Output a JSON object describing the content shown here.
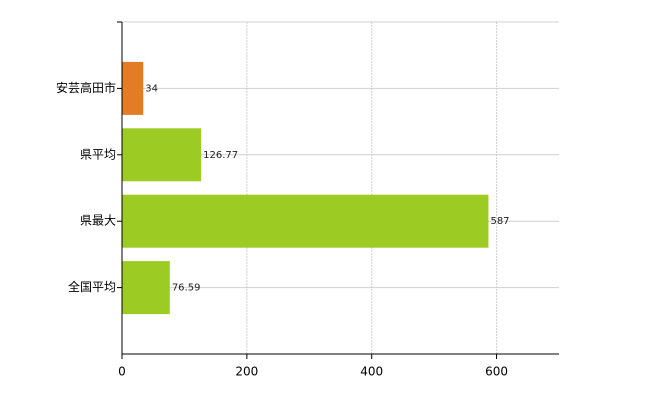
{
  "chart_data": {
    "type": "hbar",
    "categories": [
      "安芸高田市",
      "県平均",
      "県最大",
      "全国平均"
    ],
    "values": [
      34,
      126.77,
      587,
      76.59
    ],
    "colors": [
      "#e47c26",
      "#9ccc24",
      "#9ccc24",
      "#9ccc24"
    ],
    "xlim": [
      0,
      700
    ],
    "xticks": [
      0,
      200,
      400,
      600
    ],
    "grid": true
  }
}
